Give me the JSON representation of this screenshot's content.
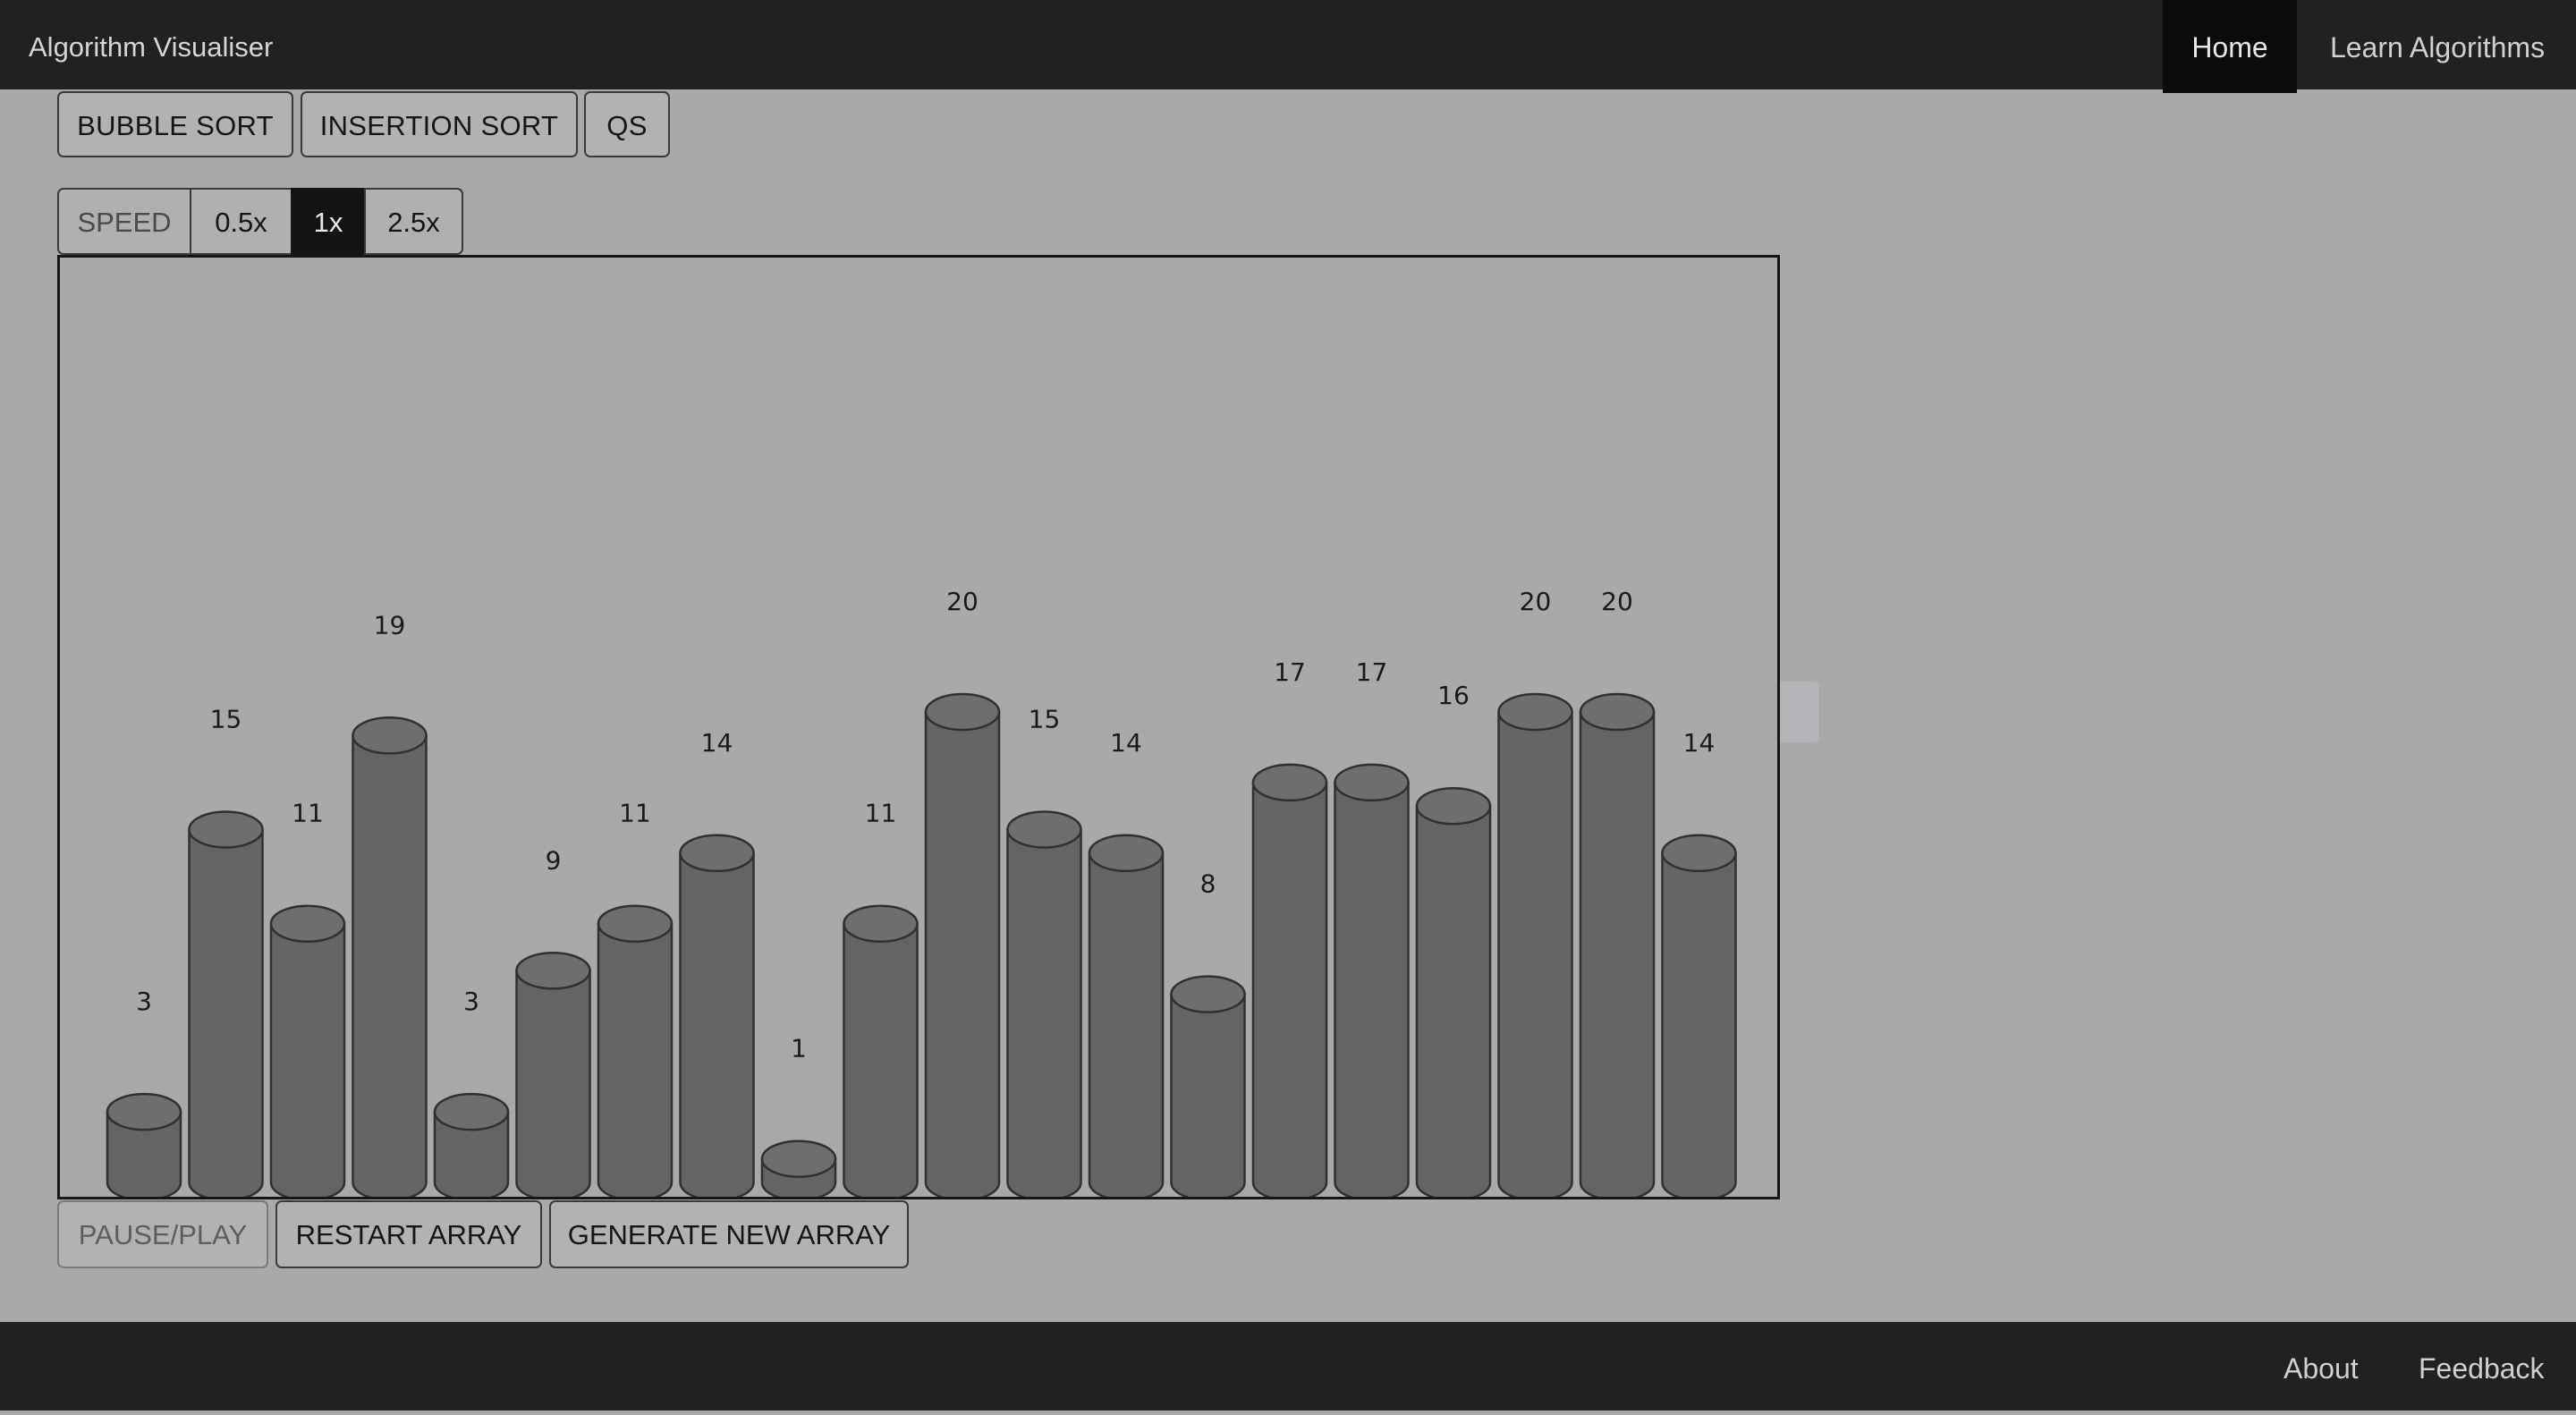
{
  "app": {
    "brand": "Algorithm Visualiser",
    "nav": [
      "Home",
      "Learn Algorithms"
    ]
  },
  "algorithms": [
    "BUBBLE SORT",
    "INSERTION SORT",
    "QS"
  ],
  "speed": {
    "label": "SPEED",
    "options": [
      "0.5x",
      "1x",
      "2.5x"
    ],
    "selected": "1x"
  },
  "controls": {
    "pause": "PAUSE/PLAY",
    "restart": "RESTART ARRAY",
    "generate": "GENERATE NEW ARRAY"
  },
  "footer": {
    "about": "About",
    "feedback": "Feedback"
  },
  "colors": {
    "bar_fill": "#646464",
    "bar_top": "#6e6e6e",
    "bar_stroke": "#303030"
  },
  "chart_data": {
    "type": "bar",
    "values": [
      3,
      15,
      11,
      19,
      3,
      9,
      11,
      14,
      1,
      11,
      20,
      15,
      14,
      8,
      17,
      17,
      16,
      20,
      20,
      14
    ],
    "ylim": [
      0,
      20
    ]
  }
}
